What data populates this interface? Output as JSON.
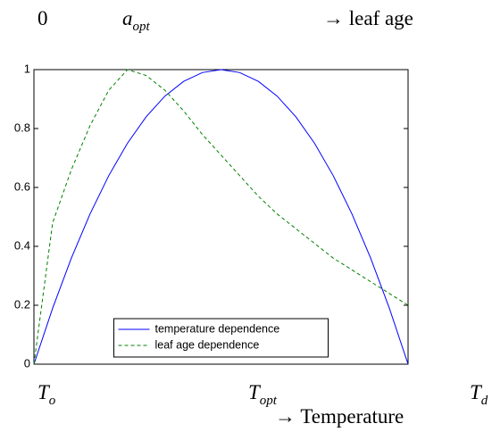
{
  "chart_data": {
    "type": "line",
    "top_labels": [
      {
        "text": "0"
      },
      {
        "text": "a",
        "sub": "opt"
      },
      {
        "text": "→ leaf age"
      }
    ],
    "bottom_labels": [
      {
        "text": "T",
        "sub": "o"
      },
      {
        "text": "T",
        "sub": "opt"
      },
      {
        "text": "T",
        "sub": "d"
      },
      {
        "text": "→ Temperature"
      }
    ],
    "x": [
      0,
      1,
      2,
      3,
      4,
      5,
      6,
      7,
      8,
      9,
      10,
      11,
      12,
      13,
      14,
      15,
      16,
      17,
      18,
      19,
      20
    ],
    "xlim": [
      0,
      20
    ],
    "ylim": [
      0,
      1
    ],
    "yticks": [
      0,
      0.2,
      0.4,
      0.6,
      0.8,
      1
    ],
    "legend": "lower center",
    "series": [
      {
        "name": "temperature dependence",
        "color": "#0000ff",
        "dash": "solid",
        "values": [
          0,
          0.19,
          0.36,
          0.51,
          0.64,
          0.75,
          0.84,
          0.91,
          0.96,
          0.99,
          1,
          0.99,
          0.96,
          0.91,
          0.84,
          0.75,
          0.64,
          0.51,
          0.36,
          0.19,
          0
        ]
      },
      {
        "name": "leaf age dependence",
        "color": "#008000",
        "dash": "dashed",
        "values": [
          0,
          0.48,
          0.66,
          0.81,
          0.93,
          1,
          0.98,
          0.93,
          0.86,
          0.78,
          0.71,
          0.64,
          0.57,
          0.51,
          0.46,
          0.41,
          0.36,
          0.32,
          0.28,
          0.24,
          0.2
        ]
      }
    ]
  }
}
